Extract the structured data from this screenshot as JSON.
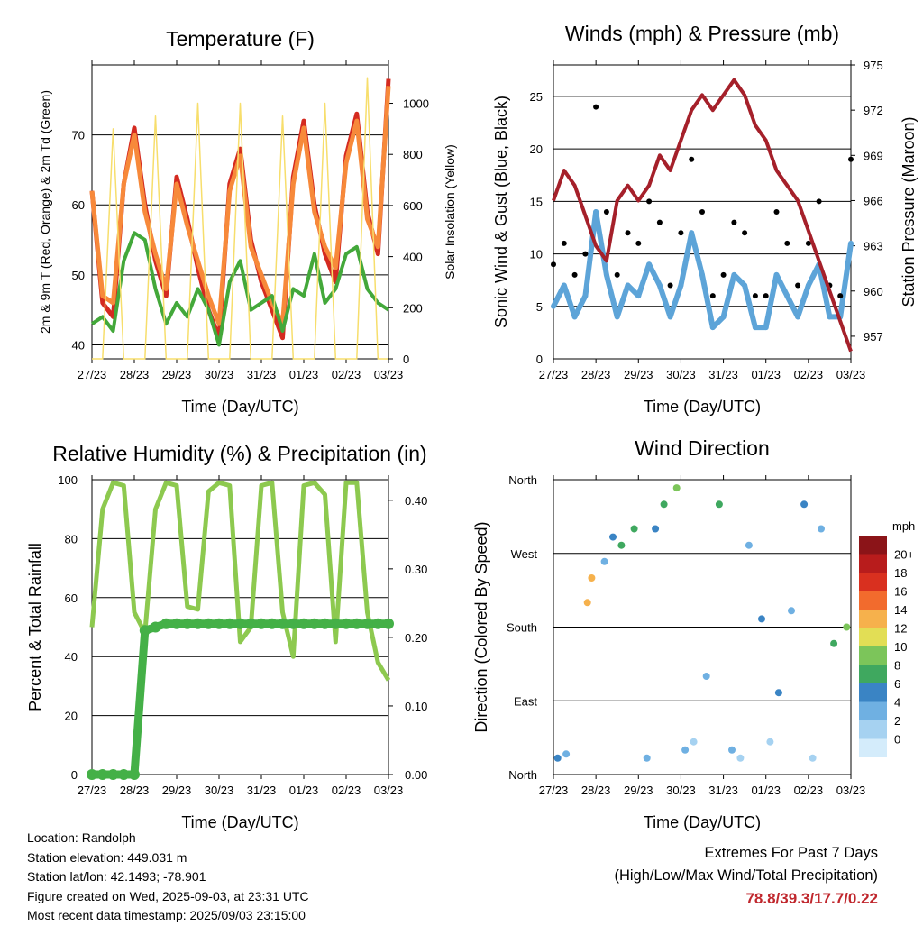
{
  "x_ticks": [
    "27/23",
    "28/23",
    "29/23",
    "30/23",
    "31/23",
    "01/23",
    "02/23",
    "03/23"
  ],
  "panels": {
    "temperature": {
      "title": "Temperature (F)",
      "xlabel": "Time (Day/UTC)",
      "ylabel_left": "2m & 9m T (Red, Orange) & 2m Td (Green)",
      "ylabel_right": "Solar Insolation (Yellow)",
      "left_ticks": [
        "40",
        "50",
        "60",
        "70"
      ],
      "right_ticks": [
        "0",
        "200",
        "400",
        "600",
        "800",
        "1000"
      ]
    },
    "winds": {
      "title": "Winds (mph) & Pressure (mb)",
      "xlabel": "Time (Day/UTC)",
      "ylabel_left": "Sonic Wind & Gust (Blue, Black)",
      "ylabel_right": "Station Pressure (Maroon)",
      "left_ticks": [
        "0",
        "5",
        "10",
        "15",
        "20",
        "25"
      ],
      "right_ticks": [
        "957",
        "960",
        "963",
        "966",
        "969",
        "972",
        "975"
      ]
    },
    "humidity": {
      "title": "Relative Humidity (%) & Precipitation (in)",
      "xlabel": "Time (Day/UTC)",
      "ylabel_left": "Percent & Total Rainfall",
      "left_ticks": [
        "0",
        "20",
        "40",
        "60",
        "80",
        "100"
      ],
      "right_ticks": [
        "0.00",
        "0.10",
        "0.20",
        "0.30",
        "0.40"
      ]
    },
    "direction": {
      "title": "Wind Direction",
      "xlabel": "Time (Day/UTC)",
      "ylabel_left": "Direction (Colored By Speed)",
      "left_ticks": [
        "North",
        "East",
        "South",
        "West",
        "North"
      ],
      "colorbar_title": "mph",
      "colorbar_labels": [
        "0",
        "2",
        "4",
        "6",
        "8",
        "10",
        "12",
        "14",
        "16",
        "18",
        "20+"
      ],
      "colorbar_colors": [
        "#d4ecfb",
        "#a6d2f1",
        "#6fb0e2",
        "#3a84c4",
        "#3fa85f",
        "#7cc55a",
        "#e2de55",
        "#f6b14c",
        "#f26b2d",
        "#d9301f",
        "#b81c1c",
        "#8b1418"
      ]
    }
  },
  "chart_data": [
    {
      "type": "line",
      "panel": "temperature",
      "x_days": [
        0,
        0.25,
        0.5,
        0.75,
        1,
        1.25,
        1.5,
        1.75,
        2,
        2.25,
        2.5,
        2.75,
        3,
        3.25,
        3.5,
        3.75,
        4,
        4.25,
        4.5,
        4.75,
        5,
        5.25,
        5.5,
        5.75,
        6,
        6.25,
        6.5,
        6.75,
        7
      ],
      "series": [
        {
          "name": "2m T",
          "color": "#d42a20",
          "values": [
            62,
            46,
            44,
            63,
            71,
            60,
            52,
            47,
            64,
            58,
            51,
            45,
            41,
            63,
            68,
            55,
            49,
            45,
            41,
            64,
            72,
            60,
            53,
            49,
            67,
            73,
            59,
            53,
            78
          ]
        },
        {
          "name": "9m T",
          "color": "#f7893a",
          "values": [
            62,
            47,
            46,
            63,
            70,
            59,
            53,
            48,
            63,
            57,
            52,
            47,
            43,
            62,
            67,
            54,
            50,
            46,
            43,
            63,
            71,
            59,
            54,
            51,
            66,
            72,
            58,
            54,
            77
          ]
        },
        {
          "name": "2m Td",
          "color": "#43a83a",
          "values": [
            43,
            44,
            42,
            52,
            56,
            55,
            48,
            43,
            46,
            44,
            48,
            45,
            40,
            49,
            52,
            45,
            46,
            47,
            42,
            48,
            47,
            53,
            46,
            48,
            53,
            54,
            48,
            46,
            45
          ]
        },
        {
          "name": "Solar Insolation",
          "color": "#f7de6c",
          "axis": "right",
          "values": [
            0,
            0,
            900,
            0,
            0,
            0,
            950,
            0,
            0,
            0,
            1000,
            0,
            0,
            0,
            1000,
            0,
            0,
            0,
            950,
            0,
            0,
            0,
            1000,
            0,
            0,
            0,
            1100,
            0,
            0
          ]
        }
      ],
      "ylim_left": [
        38,
        80
      ],
      "ylim_right": [
        0,
        1150
      ]
    },
    {
      "type": "scatter",
      "panel": "winds",
      "x_days": [
        0,
        0.25,
        0.5,
        0.75,
        1,
        1.25,
        1.5,
        1.75,
        2,
        2.25,
        2.5,
        2.75,
        3,
        3.25,
        3.5,
        3.75,
        4,
        4.25,
        4.5,
        4.75,
        5,
        5.25,
        5.5,
        5.75,
        6,
        6.25,
        6.5,
        6.75,
        7
      ],
      "series": [
        {
          "name": "Sonic Wind",
          "color": "#5da4d8",
          "values": [
            5,
            7,
            4,
            6,
            14,
            8,
            4,
            7,
            6,
            9,
            7,
            4,
            7,
            12,
            8,
            3,
            4,
            8,
            7,
            3,
            3,
            8,
            6,
            4,
            7,
            9,
            4,
            4,
            11
          ]
        },
        {
          "name": "Gust",
          "color": "#000000",
          "values": [
            9,
            11,
            8,
            10,
            24,
            14,
            8,
            12,
            11,
            15,
            13,
            7,
            12,
            19,
            14,
            6,
            8,
            13,
            12,
            6,
            6,
            14,
            11,
            7,
            11,
            15,
            7,
            6,
            19
          ]
        },
        {
          "name": "Station Pressure",
          "color": "#a5202a",
          "axis": "right",
          "values": [
            966,
            968,
            967,
            965,
            963,
            962,
            966,
            967,
            966,
            967,
            969,
            968,
            970,
            972,
            973,
            972,
            973,
            974,
            973,
            971,
            970,
            968,
            967,
            966,
            964,
            962,
            960,
            958,
            956
          ]
        }
      ],
      "ylim_left": [
        0,
        28
      ],
      "ylim_right": [
        955.5,
        975
      ]
    },
    {
      "type": "line",
      "panel": "humidity",
      "x_days": [
        0,
        0.25,
        0.5,
        0.75,
        1,
        1.25,
        1.5,
        1.75,
        2,
        2.25,
        2.5,
        2.75,
        3,
        3.25,
        3.5,
        3.75,
        4,
        4.25,
        4.5,
        4.75,
        5,
        5.25,
        5.5,
        5.75,
        6,
        6.25,
        6.5,
        6.75,
        7
      ],
      "series": [
        {
          "name": "Relative Humidity",
          "color": "#8dc94f",
          "values": [
            50,
            90,
            99,
            98,
            55,
            48,
            90,
            99,
            98,
            57,
            56,
            96,
            99,
            98,
            45,
            50,
            98,
            99,
            55,
            40,
            98,
            99,
            95,
            45,
            99,
            99,
            55,
            38,
            32
          ]
        },
        {
          "name": "Total Rainfall",
          "color": "#44b047",
          "axis": "right",
          "values": [
            0,
            0,
            0,
            0,
            0,
            0.21,
            0.215,
            0.22,
            0.22,
            0.22,
            0.22,
            0.22,
            0.22,
            0.22,
            0.22,
            0.22,
            0.22,
            0.22,
            0.22,
            0.22,
            0.22,
            0.22,
            0.22,
            0.22,
            0.22,
            0.22,
            0.22,
            0.22,
            0.22
          ]
        }
      ],
      "ylim_left": [
        0,
        100
      ],
      "ylim_right": [
        0,
        0.43
      ]
    },
    {
      "type": "scatter",
      "panel": "direction",
      "x_days": [
        0.1,
        0.3,
        0.8,
        0.9,
        1.2,
        1.4,
        1.6,
        1.9,
        2.2,
        2.4,
        2.6,
        2.9,
        3.1,
        3.3,
        3.6,
        3.9,
        4.2,
        4.4,
        4.6,
        4.9,
        5.1,
        5.3,
        5.6,
        5.9,
        6.1,
        6.3,
        6.6,
        6.9
      ],
      "series": [
        {
          "name": "Direction (deg)",
          "values": [
            20,
            25,
            210,
            240,
            260,
            290,
            280,
            300,
            20,
            300,
            330,
            350,
            30,
            40,
            120,
            330,
            30,
            20,
            280,
            190,
            40,
            100,
            200,
            330,
            20,
            300,
            160,
            180
          ]
        },
        {
          "name": "Speed (mph)",
          "values": [
            6,
            5,
            15,
            14,
            4,
            6,
            8,
            9,
            4,
            7,
            8,
            10,
            5,
            3,
            4,
            9,
            4,
            3,
            5,
            6,
            3,
            6,
            5,
            7,
            2,
            5,
            8,
            11
          ]
        }
      ],
      "ylim": [
        0,
        360
      ]
    }
  ],
  "footer": {
    "location": "Location: Randolph",
    "elevation": "Station elevation: 449.031 m",
    "latlon": "Station lat/lon: 42.1493; -78.901",
    "created": "Figure created on Wed, 2025-09-03, at 23:31 UTC",
    "timestamp": "Most recent data timestamp: 2025/09/03 23:15:00"
  },
  "extremes": {
    "line1": "Extremes For Past 7 Days",
    "line2": "(High/Low/Max Wind/Total Precipitation)",
    "values": "78.8/39.3/17.7/0.22"
  }
}
